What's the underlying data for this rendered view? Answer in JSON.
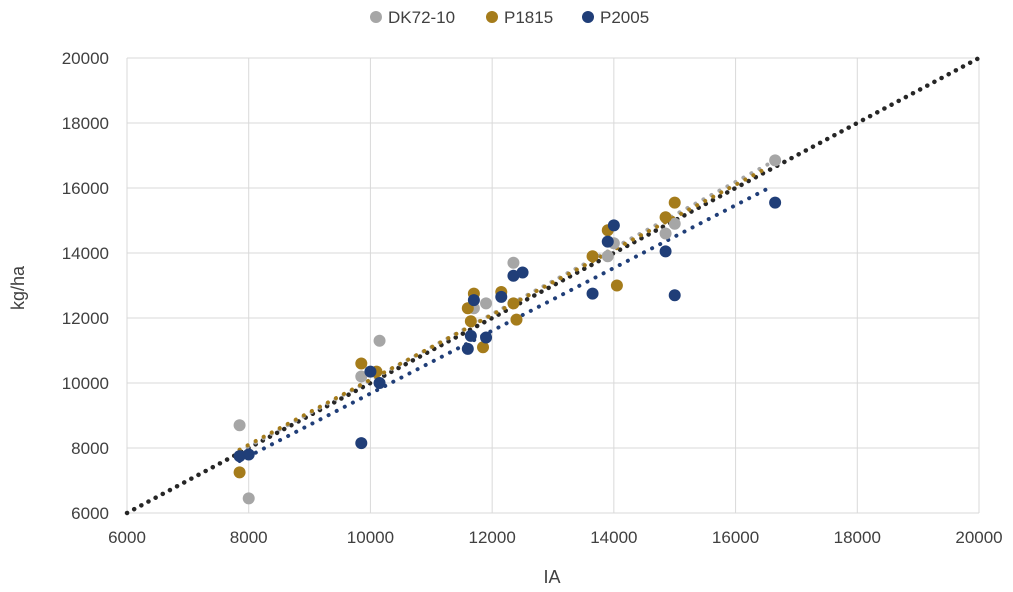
{
  "chart_data": {
    "type": "scatter",
    "xlabel": "IA",
    "ylabel": "kg/ha",
    "xlim": [
      6000,
      20000
    ],
    "ylim": [
      6000,
      20000
    ],
    "xticks": [
      6000,
      8000,
      10000,
      12000,
      14000,
      16000,
      18000,
      20000
    ],
    "yticks": [
      6000,
      8000,
      10000,
      12000,
      14000,
      16000,
      18000,
      20000
    ],
    "grid": true,
    "legend_position": "top",
    "series": [
      {
        "name": "DK72-10",
        "color": "#a6a6a6",
        "points": [
          [
            7850,
            8700
          ],
          [
            8000,
            6450
          ],
          [
            9850,
            10200
          ],
          [
            10150,
            11300
          ],
          [
            11700,
            12300
          ],
          [
            11900,
            12450
          ],
          [
            12350,
            13700
          ],
          [
            13900,
            13900
          ],
          [
            14000,
            14300
          ],
          [
            14850,
            14600
          ],
          [
            15000,
            14900
          ],
          [
            16650,
            16850
          ]
        ],
        "trendline": {
          "from": [
            7850,
            7900
          ],
          "to": [
            16700,
            16900
          ]
        }
      },
      {
        "name": "P1815",
        "color": "#a57c1b",
        "points": [
          [
            7850,
            7250
          ],
          [
            9850,
            10600
          ],
          [
            10100,
            10350
          ],
          [
            11600,
            12300
          ],
          [
            11700,
            12750
          ],
          [
            11650,
            11900
          ],
          [
            11850,
            11100
          ],
          [
            12150,
            12800
          ],
          [
            12350,
            12450
          ],
          [
            12400,
            11950
          ],
          [
            13650,
            13900
          ],
          [
            13900,
            14700
          ],
          [
            14050,
            13000
          ],
          [
            14850,
            15100
          ],
          [
            15000,
            15550
          ]
        ],
        "trendline": {
          "from": [
            7850,
            7950
          ],
          "to": [
            16500,
            16600
          ]
        }
      },
      {
        "name": "P2005",
        "color": "#203e78",
        "points": [
          [
            7850,
            7750
          ],
          [
            8000,
            7800
          ],
          [
            9850,
            8150
          ],
          [
            10000,
            10350
          ],
          [
            10150,
            10000
          ],
          [
            11600,
            11050
          ],
          [
            11650,
            11450
          ],
          [
            11700,
            12550
          ],
          [
            11900,
            11400
          ],
          [
            12150,
            12650
          ],
          [
            12350,
            13300
          ],
          [
            12500,
            13400
          ],
          [
            13650,
            12750
          ],
          [
            13900,
            14350
          ],
          [
            14000,
            14850
          ],
          [
            14850,
            14050
          ],
          [
            15000,
            12700
          ],
          [
            16650,
            15550
          ]
        ],
        "trendline": {
          "from": [
            7850,
            7600
          ],
          "to": [
            16600,
            16050
          ]
        }
      }
    ],
    "reference_line": {
      "style": "dotted",
      "color": "#262626",
      "from": [
        6000,
        6000
      ],
      "to": [
        20000,
        20000
      ]
    }
  }
}
